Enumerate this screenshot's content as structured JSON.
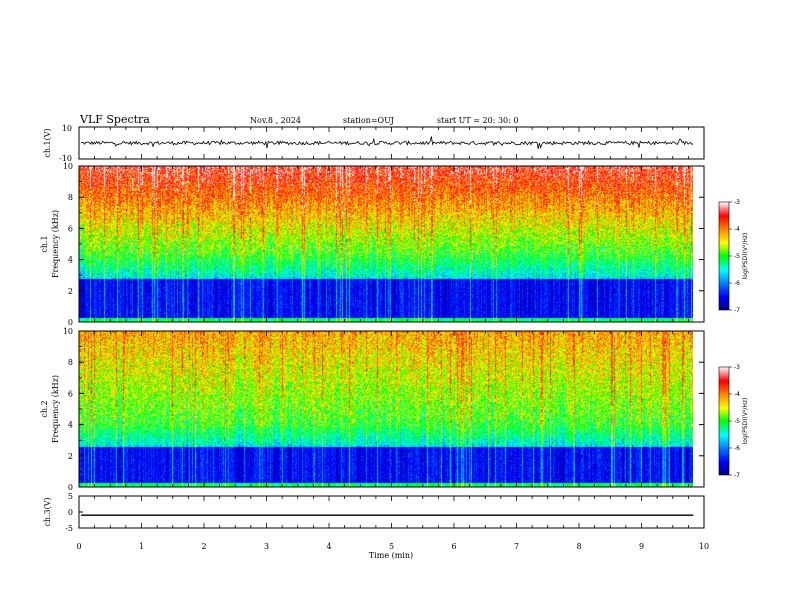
{
  "header": {
    "title": "VLF Spectra",
    "date": "Nov.8  , 2024",
    "station": "station=OUJ",
    "start": "start  UT  =   20: 30: 0"
  },
  "chart_data": [
    {
      "type": "line",
      "name": "ch1-waveform",
      "ylabel": "ch.1(V)",
      "ylim": [
        -10,
        10
      ],
      "y_tick_labels": [
        "10",
        "-10"
      ],
      "description_values": {
        "baseline": 0,
        "noise_amplitude": 2
      }
    },
    {
      "type": "heatmap",
      "name": "ch1-spectrogram",
      "ylabel": "ch.1\nFrequency  (kHz)",
      "ylim": [
        0,
        10
      ],
      "y_tick_labels": [
        "0",
        "2",
        "4",
        "6",
        "8",
        "10"
      ],
      "colorbar": {
        "label": "log(PSD)(V²/Hz)",
        "range": [
          -7,
          -3
        ],
        "tick_labels": [
          "-3",
          "-4",
          "-5",
          "-6",
          "-7"
        ]
      }
    },
    {
      "type": "heatmap",
      "name": "ch2-spectrogram",
      "ylabel": "ch.2\nFrequency  (kHz)",
      "ylim": [
        0,
        10
      ],
      "y_tick_labels": [
        "0",
        "2",
        "4",
        "6",
        "8",
        "10"
      ],
      "colorbar": {
        "label": "log(PSD)(V²/Hz)",
        "range": [
          -7,
          -3
        ],
        "tick_labels": [
          "-3",
          "-4",
          "-5",
          "-6",
          "-7"
        ]
      }
    },
    {
      "type": "line",
      "name": "ch3-waveform",
      "ylabel": "ch.3(V)",
      "ylim": [
        -5,
        5
      ],
      "y_tick_labels": [
        "5",
        "0",
        "-5"
      ],
      "description_values": {
        "constant_level": -1
      }
    }
  ],
  "x_axis": {
    "label": "Time  (min)",
    "range": [
      0,
      10
    ],
    "tick_labels": [
      "0",
      "1",
      "2",
      "3",
      "4",
      "5",
      "6",
      "7",
      "8",
      "9",
      "10"
    ],
    "data_end": 9.83
  },
  "colors": {
    "axis": "#000000",
    "waveform": "#000000",
    "cmap": [
      "#000080",
      "#0000ff",
      "#0080ff",
      "#00ffff",
      "#00ff80",
      "#00ff00",
      "#80ff00",
      "#ffff00",
      "#ff8000",
      "#ff0000",
      "#ffffff"
    ]
  }
}
